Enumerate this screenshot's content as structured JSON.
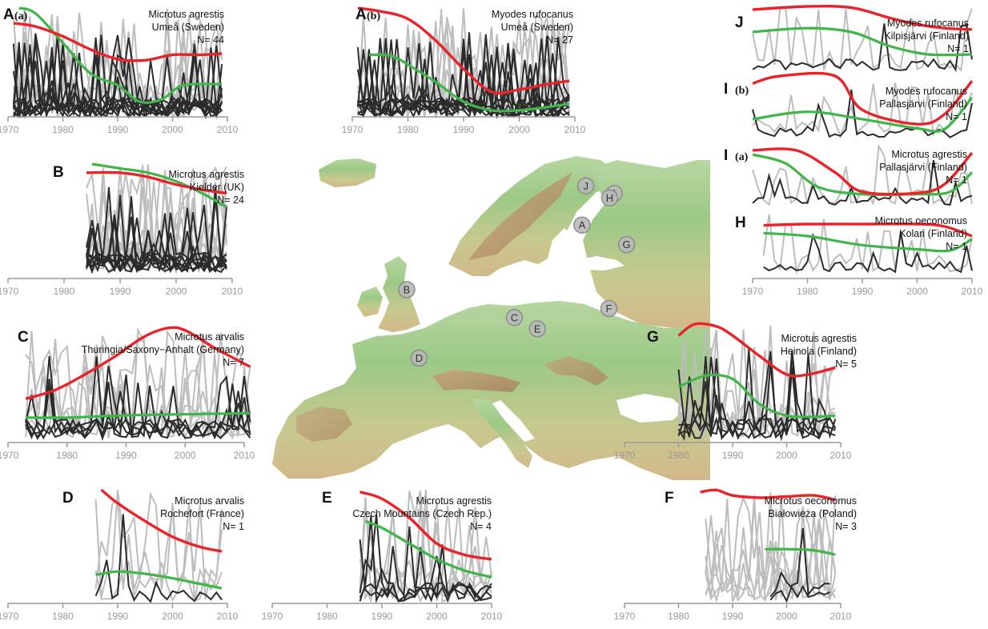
{
  "colors": {
    "red": "#e8232a",
    "green": "#3fb54a",
    "dark": "#2b2b2b",
    "grey": "#bdbdbd",
    "axis": "#9a9a9a"
  },
  "map": {
    "sites": [
      {
        "label": "J",
        "lon": 20.8,
        "lat": 69.0
      },
      {
        "label": "I",
        "lon": 24.5,
        "lat": 68.0
      },
      {
        "label": "H",
        "lon": 23.9,
        "lat": 67.4
      },
      {
        "label": "A",
        "lon": 20.3,
        "lat": 63.8
      },
      {
        "label": "G",
        "lon": 26.1,
        "lat": 61.2
      },
      {
        "label": "B",
        "lon": -2.5,
        "lat": 55.2
      },
      {
        "label": "C",
        "lon": 11.5,
        "lat": 51.5
      },
      {
        "label": "F",
        "lon": 23.8,
        "lat": 52.7
      },
      {
        "label": "E",
        "lon": 14.5,
        "lat": 50.0
      },
      {
        "label": "D",
        "lon": -0.9,
        "lat": 46.1
      }
    ]
  },
  "chart_data": [
    {
      "type": "line",
      "letter": "A",
      "sub": "(a)",
      "species": "Microtus agrestis",
      "site": "Umeå (Sweden)",
      "n_label": "N= 44",
      "xlim": [
        1970,
        2010
      ],
      "ticks": [
        1970,
        1980,
        1990,
        2000,
        2010
      ],
      "red": [
        [
          1971,
          0.86
        ],
        [
          1975,
          0.83
        ],
        [
          1980,
          0.74
        ],
        [
          1985,
          0.62
        ],
        [
          1990,
          0.53
        ],
        [
          1995,
          0.52
        ],
        [
          2000,
          0.57
        ],
        [
          2005,
          0.57
        ],
        [
          2009,
          0.58
        ]
      ],
      "green": [
        [
          1972,
          1.0
        ],
        [
          1975,
          0.95
        ],
        [
          1980,
          0.68
        ],
        [
          1985,
          0.4
        ],
        [
          1990,
          0.29
        ],
        [
          1994,
          0.14
        ],
        [
          1998,
          0.16
        ],
        [
          2002,
          0.29
        ],
        [
          2009,
          0.3
        ]
      ],
      "grey_count": 8,
      "dark_count": 10,
      "grey_span": [
        1971,
        2009
      ],
      "dark_span": [
        1971,
        2009
      ]
    },
    {
      "type": "line",
      "letter": "A",
      "sub": "(b)",
      "species": "Myodes rufocanus",
      "site": "Umeå (Sweden)",
      "n_label": "N= 27",
      "xlim": [
        1970,
        2010
      ],
      "ticks": [
        1970,
        1980,
        1990,
        2000,
        2010
      ],
      "red": [
        [
          1971,
          1.0
        ],
        [
          1975,
          0.97
        ],
        [
          1980,
          0.9
        ],
        [
          1985,
          0.7
        ],
        [
          1990,
          0.44
        ],
        [
          1995,
          0.23
        ],
        [
          2000,
          0.25
        ],
        [
          2005,
          0.3
        ],
        [
          2009,
          0.33
        ]
      ],
      "green": [
        [
          1973,
          0.57
        ],
        [
          1977,
          0.56
        ],
        [
          1980,
          0.48
        ],
        [
          1985,
          0.32
        ],
        [
          1990,
          0.14
        ],
        [
          1995,
          0.06
        ],
        [
          2000,
          0.06
        ],
        [
          2005,
          0.09
        ],
        [
          2009,
          0.12
        ]
      ],
      "grey_count": 7,
      "dark_count": 10,
      "grey_span": [
        1971,
        2009
      ],
      "dark_span": [
        1971,
        2009
      ]
    },
    {
      "type": "line",
      "letter": "B",
      "sub": "",
      "species": "Microtus agrestis",
      "site": "Kielder (UK)",
      "n_label": "N= 24",
      "xlim": [
        1970,
        2010
      ],
      "ticks": [
        1970,
        1980,
        1990,
        2000,
        2010
      ],
      "red": [
        [
          1984,
          0.92
        ],
        [
          1990,
          0.92
        ],
        [
          1995,
          0.88
        ],
        [
          2000,
          0.81
        ],
        [
          2005,
          0.76
        ],
        [
          2009,
          0.73
        ]
      ],
      "green": [
        [
          1985,
          1.0
        ],
        [
          1990,
          0.96
        ],
        [
          1995,
          0.92
        ],
        [
          2000,
          0.84
        ],
        [
          2005,
          0.72
        ],
        [
          2009,
          0.6
        ]
      ],
      "grey_count": 10,
      "dark_count": 10,
      "grey_span": [
        1984,
        2009
      ],
      "dark_span": [
        1984,
        2009
      ]
    },
    {
      "type": "line",
      "letter": "C",
      "sub": "",
      "species": "Microtus arvalis",
      "site": "Thuringia/Saxony−Anhalt (Germany)",
      "n_label": "N= 7",
      "xlim": [
        1970,
        2010
      ],
      "ticks": [
        1970,
        1980,
        1990,
        2000,
        2010
      ],
      "red": [
        [
          1973,
          0.36
        ],
        [
          1978,
          0.44
        ],
        [
          1983,
          0.58
        ],
        [
          1988,
          0.74
        ],
        [
          1993,
          0.92
        ],
        [
          1997,
          1.0
        ],
        [
          2000,
          0.98
        ],
        [
          2005,
          0.82
        ],
        [
          2011,
          0.65
        ]
      ],
      "green": [
        [
          1973,
          0.19
        ],
        [
          1980,
          0.19
        ],
        [
          1990,
          0.21
        ],
        [
          2000,
          0.22
        ],
        [
          2011,
          0.23
        ]
      ],
      "grey_count": 6,
      "dark_count": 5,
      "grey_span": [
        1973,
        2011
      ],
      "dark_span": [
        1973,
        2011
      ]
    },
    {
      "type": "line",
      "letter": "D",
      "sub": "",
      "species": "Microtus arvalis",
      "site": "Rochefort (France)",
      "n_label": "N= 1",
      "xlim": [
        1970,
        2010
      ],
      "ticks": [
        1970,
        1980,
        1990,
        2000,
        2010
      ],
      "red": [
        [
          1987,
          1.0
        ],
        [
          1990,
          0.88
        ],
        [
          1995,
          0.72
        ],
        [
          2000,
          0.58
        ],
        [
          2005,
          0.49
        ],
        [
          2009,
          0.45
        ]
      ],
      "green": [
        [
          1986,
          0.24
        ],
        [
          1990,
          0.27
        ],
        [
          1995,
          0.25
        ],
        [
          2000,
          0.21
        ],
        [
          2005,
          0.16
        ],
        [
          2009,
          0.12
        ]
      ],
      "grey_count": 3,
      "dark_count": 1,
      "grey_span": [
        1986,
        2009
      ],
      "dark_span": [
        1986,
        2009
      ]
    },
    {
      "type": "line",
      "letter": "E",
      "sub": "",
      "species": "Microtus agrestis",
      "site": "Czech Mountains (Czech Rep.)",
      "n_label": "N= 4",
      "xlim": [
        1970,
        2010
      ],
      "ticks": [
        1970,
        1980,
        1990,
        2000,
        2010
      ],
      "red": [
        [
          1986,
          0.98
        ],
        [
          1990,
          0.92
        ],
        [
          1995,
          0.75
        ],
        [
          2000,
          0.52
        ],
        [
          2005,
          0.42
        ],
        [
          2010,
          0.38
        ]
      ],
      "green": [
        [
          1987,
          0.72
        ],
        [
          1990,
          0.66
        ],
        [
          1995,
          0.52
        ],
        [
          2000,
          0.38
        ],
        [
          2005,
          0.28
        ],
        [
          2010,
          0.22
        ]
      ],
      "grey_count": 5,
      "dark_count": 4,
      "grey_span": [
        1986,
        2010
      ],
      "dark_span": [
        1986,
        2010
      ]
    },
    {
      "type": "line",
      "letter": "F",
      "sub": "",
      "species": "Microtus oeconomus",
      "site": "Białowieża (Poland)",
      "n_label": "N= 3",
      "xlim": [
        1970,
        2010
      ],
      "ticks": [
        1970,
        1980,
        1990,
        2000,
        2010
      ],
      "red": [
        [
          1984,
          1.0
        ],
        [
          1987,
          1.02
        ],
        [
          1990,
          0.97
        ],
        [
          1995,
          0.95
        ],
        [
          2000,
          0.96
        ],
        [
          2005,
          0.97
        ],
        [
          2009,
          0.93
        ]
      ],
      "green": [
        [
          1996,
          0.48
        ],
        [
          2000,
          0.48
        ],
        [
          2005,
          0.47
        ],
        [
          2009,
          0.43
        ]
      ],
      "grey_count": 6,
      "dark_count": 2,
      "grey_span": [
        1985,
        2009
      ],
      "dark_span": [
        1997,
        2008
      ]
    },
    {
      "type": "line",
      "letter": "G",
      "sub": "",
      "species": "Microtus agrestis",
      "site": "Heinola (Finland)",
      "n_label": "N= 5",
      "xlim": [
        1970,
        2010
      ],
      "ticks": [
        1970,
        1980,
        1990,
        2000,
        2010
      ],
      "red": [
        [
          1980,
          0.9
        ],
        [
          1983,
          1.0
        ],
        [
          1987,
          0.98
        ],
        [
          1990,
          0.9
        ],
        [
          1995,
          0.72
        ],
        [
          2000,
          0.56
        ],
        [
          2004,
          0.56
        ],
        [
          2009,
          0.62
        ]
      ],
      "green": [
        [
          1980,
          0.45
        ],
        [
          1985,
          0.55
        ],
        [
          1990,
          0.52
        ],
        [
          1995,
          0.3
        ],
        [
          2000,
          0.2
        ],
        [
          2005,
          0.19
        ],
        [
          2009,
          0.2
        ]
      ],
      "grey_count": 5,
      "dark_count": 5,
      "grey_span": [
        1980,
        2009
      ],
      "dark_span": [
        1980,
        2009
      ]
    },
    {
      "type": "line",
      "letter": "J",
      "sub": "",
      "species": "Myodes rufocanus",
      "site": "Kilpisjärvi (Finland)",
      "n_label": "N= 1",
      "xlim": [
        1970,
        2010
      ],
      "ticks": [],
      "red": [
        [
          1970,
          0.95
        ],
        [
          1980,
          1.0
        ],
        [
          1988,
          0.98
        ],
        [
          1995,
          0.82
        ],
        [
          2000,
          0.72
        ],
        [
          2005,
          0.66
        ],
        [
          2010,
          0.64
        ]
      ],
      "green": [
        [
          1970,
          0.6
        ],
        [
          1980,
          0.66
        ],
        [
          1988,
          0.6
        ],
        [
          1995,
          0.38
        ],
        [
          2002,
          0.25
        ],
        [
          2010,
          0.25
        ]
      ],
      "grey_count": 1,
      "dark_count": 1,
      "grey_span": [
        1970,
        2010
      ],
      "dark_span": [
        1970,
        2010
      ]
    },
    {
      "type": "line",
      "letter": "I",
      "sub": "(b)",
      "species": "Myodes rufocanus",
      "site": "Pallasjärvi (Finland)",
      "n_label": "N= 1",
      "xlim": [
        1970,
        2010
      ],
      "ticks": [],
      "red": [
        [
          1970,
          0.88
        ],
        [
          1975,
          1.0
        ],
        [
          1985,
          1.0
        ],
        [
          1990,
          0.45
        ],
        [
          2000,
          0.22
        ],
        [
          2005,
          0.38
        ],
        [
          2010,
          0.92
        ]
      ],
      "green": [
        [
          1970,
          0.3
        ],
        [
          1980,
          0.42
        ],
        [
          1990,
          0.3
        ],
        [
          2000,
          0.15
        ],
        [
          2005,
          0.14
        ],
        [
          2010,
          0.65
        ]
      ],
      "grey_count": 1,
      "dark_count": 1,
      "grey_span": [
        1970,
        2010
      ],
      "dark_span": [
        1970,
        2010
      ]
    },
    {
      "type": "line",
      "letter": "I",
      "sub": "(a)",
      "species": "Microtus agrestis",
      "site": "Pallasjärvi (Finland)",
      "n_label": "N= 1",
      "xlim": [
        1970,
        2010
      ],
      "ticks": [],
      "red": [
        [
          1970,
          0.92
        ],
        [
          1978,
          0.92
        ],
        [
          1985,
          0.55
        ],
        [
          1990,
          0.22
        ],
        [
          2000,
          0.2
        ],
        [
          2005,
          0.35
        ],
        [
          2010,
          0.88
        ]
      ],
      "green": [
        [
          1970,
          0.85
        ],
        [
          1976,
          0.7
        ],
        [
          1982,
          0.3
        ],
        [
          1990,
          0.18
        ],
        [
          2000,
          0.18
        ],
        [
          2006,
          0.22
        ],
        [
          2010,
          0.55
        ]
      ],
      "grey_count": 1,
      "dark_count": 1,
      "grey_span": [
        1970,
        2010
      ],
      "dark_span": [
        1970,
        2010
      ]
    },
    {
      "type": "line",
      "letter": "H",
      "sub": "",
      "species": "Microtus oeconomus",
      "site": "Kolari (Finland)",
      "n_label": "N= 1",
      "xlim": [
        1970,
        2010
      ],
      "ticks": [
        1970,
        1980,
        1990,
        2000,
        2010
      ],
      "red": [
        [
          1972,
          0.78
        ],
        [
          1980,
          0.8
        ],
        [
          1990,
          0.8
        ],
        [
          2000,
          0.8
        ],
        [
          2005,
          0.76
        ],
        [
          2010,
          0.6
        ]
      ],
      "green": [
        [
          1972,
          0.65
        ],
        [
          1980,
          0.6
        ],
        [
          1990,
          0.45
        ],
        [
          2000,
          0.38
        ],
        [
          2006,
          0.36
        ],
        [
          2010,
          0.55
        ]
      ],
      "grey_count": 1,
      "dark_count": 1,
      "grey_span": [
        1972,
        2010
      ],
      "dark_span": [
        1972,
        2010
      ]
    }
  ]
}
